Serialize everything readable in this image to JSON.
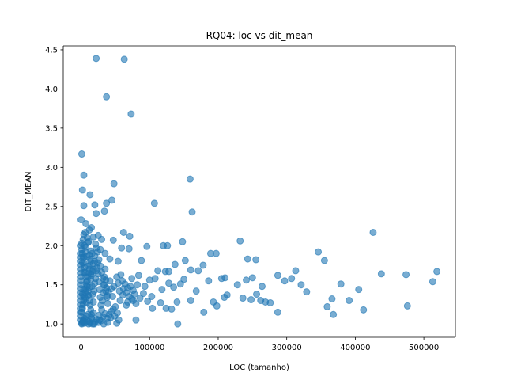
{
  "chart_data": {
    "type": "scatter",
    "title": "RQ04: loc vs dit_mean",
    "xlabel": "LOC (tamanho)",
    "ylabel": "DIT_MEAN",
    "xlim": [
      -26000,
      546000
    ],
    "ylim": [
      0.83,
      4.55
    ],
    "xticks": [
      0,
      100000,
      200000,
      300000,
      400000,
      500000
    ],
    "yticks": [
      1.0,
      1.5,
      2.0,
      2.5,
      3.0,
      3.5,
      4.0,
      4.5
    ],
    "grid": false,
    "legend": "none",
    "marker_color": "#1f77b4",
    "marker_alpha": 0.6,
    "points": [
      [
        22000,
        4.39
      ],
      [
        63000,
        4.38
      ],
      [
        37000,
        3.9
      ],
      [
        73000,
        3.68
      ],
      [
        1000,
        3.17
      ],
      [
        159000,
        2.85
      ],
      [
        4000,
        2.9
      ],
      [
        2000,
        2.71
      ],
      [
        13000,
        2.65
      ],
      [
        48000,
        2.79
      ],
      [
        45000,
        2.58
      ],
      [
        37000,
        2.54
      ],
      [
        107000,
        2.54
      ],
      [
        20000,
        2.52
      ],
      [
        4000,
        2.51
      ],
      [
        34000,
        2.44
      ],
      [
        22000,
        2.41
      ],
      [
        162000,
        2.43
      ],
      [
        0,
        2.33
      ],
      [
        7000,
        2.28
      ],
      [
        15000,
        2.23
      ],
      [
        426000,
        2.17
      ],
      [
        6000,
        2.17
      ],
      [
        12000,
        2.2
      ],
      [
        25000,
        2.13
      ],
      [
        62000,
        2.17
      ],
      [
        71000,
        2.12
      ],
      [
        4000,
        2.14
      ],
      [
        18000,
        2.11
      ],
      [
        30000,
        2.08
      ],
      [
        47000,
        2.07
      ],
      [
        232000,
        2.06
      ],
      [
        148000,
        2.05
      ],
      [
        1000,
        2.03
      ],
      [
        10000,
        2.04
      ],
      [
        21000,
        2.02
      ],
      [
        120000,
        2.0
      ],
      [
        126000,
        2.0
      ],
      [
        96000,
        1.99
      ],
      [
        59000,
        1.97
      ],
      [
        70000,
        1.96
      ],
      [
        346000,
        1.92
      ],
      [
        189000,
        1.9
      ],
      [
        197000,
        1.9
      ],
      [
        28000,
        1.95
      ],
      [
        35000,
        1.9
      ],
      [
        14000,
        1.93
      ],
      [
        243000,
        1.83
      ],
      [
        255000,
        1.82
      ],
      [
        355000,
        1.81
      ],
      [
        88000,
        1.81
      ],
      [
        152000,
        1.81
      ],
      [
        4000,
        1.85
      ],
      [
        13000,
        1.83
      ],
      [
        42000,
        1.83
      ],
      [
        54000,
        1.8
      ],
      [
        137000,
        1.76
      ],
      [
        178000,
        1.75
      ],
      [
        160000,
        1.69
      ],
      [
        171000,
        1.68
      ],
      [
        313000,
        1.68
      ],
      [
        123000,
        1.67
      ],
      [
        128000,
        1.67
      ],
      [
        519000,
        1.67
      ],
      [
        438000,
        1.64
      ],
      [
        474000,
        1.63
      ],
      [
        287000,
        1.62
      ],
      [
        307000,
        1.58
      ],
      [
        250000,
        1.59
      ],
      [
        210000,
        1.59
      ],
      [
        205000,
        1.58
      ],
      [
        513000,
        1.54
      ],
      [
        321000,
        1.5
      ],
      [
        379000,
        1.51
      ],
      [
        264000,
        1.48
      ],
      [
        228000,
        1.5
      ],
      [
        186000,
        1.55
      ],
      [
        241000,
        1.56
      ],
      [
        297000,
        1.55
      ],
      [
        329000,
        1.41
      ],
      [
        405000,
        1.44
      ],
      [
        256000,
        1.38
      ],
      [
        213000,
        1.37
      ],
      [
        209000,
        1.34
      ],
      [
        236000,
        1.33
      ],
      [
        248000,
        1.31
      ],
      [
        262000,
        1.3
      ],
      [
        269000,
        1.28
      ],
      [
        276000,
        1.27
      ],
      [
        366000,
        1.32
      ],
      [
        391000,
        1.3
      ],
      [
        359000,
        1.22
      ],
      [
        412000,
        1.18
      ],
      [
        476000,
        1.23
      ],
      [
        368000,
        1.12
      ],
      [
        287000,
        1.15
      ],
      [
        179000,
        1.15
      ],
      [
        193000,
        1.28
      ],
      [
        198000,
        1.23
      ],
      [
        160000,
        1.3
      ],
      [
        140000,
        1.28
      ],
      [
        116000,
        1.27
      ],
      [
        132000,
        1.19
      ],
      [
        124000,
        1.2
      ],
      [
        104000,
        1.2
      ],
      [
        141000,
        1.0
      ],
      [
        80000,
        1.05
      ],
      [
        52000,
        1.01
      ],
      [
        55000,
        1.05
      ],
      [
        93000,
        1.48
      ],
      [
        100000,
        1.56
      ],
      [
        108000,
        1.58
      ],
      [
        112000,
        1.68
      ],
      [
        84000,
        1.62
      ],
      [
        76000,
        1.43
      ],
      [
        68000,
        1.46
      ],
      [
        61000,
        1.37
      ],
      [
        57000,
        1.3
      ],
      [
        66000,
        1.24
      ],
      [
        74000,
        1.32
      ],
      [
        86000,
        1.33
      ],
      [
        91000,
        1.39
      ],
      [
        97000,
        1.29
      ],
      [
        103000,
        1.35
      ],
      [
        118000,
        1.44
      ],
      [
        128000,
        1.52
      ],
      [
        135000,
        1.47
      ],
      [
        145000,
        1.51
      ],
      [
        150000,
        1.57
      ],
      [
        168000,
        1.42
      ],
      [
        1000,
        1.0
      ],
      [
        2000,
        1.02
      ],
      [
        3000,
        1.05
      ],
      [
        5000,
        1.07
      ],
      [
        8000,
        1.1
      ],
      [
        10000,
        1.12
      ],
      [
        12000,
        1.03
      ],
      [
        15000,
        1.08
      ],
      [
        18000,
        1.14
      ],
      [
        20000,
        1.02
      ],
      [
        23000,
        1.06
      ],
      [
        26000,
        1.11
      ],
      [
        29000,
        1.04
      ],
      [
        32000,
        1.09
      ],
      [
        35000,
        1.13
      ],
      [
        38000,
        1.07
      ],
      [
        41000,
        1.12
      ],
      [
        44000,
        1.16
      ],
      [
        47000,
        1.19
      ],
      [
        50000,
        1.22
      ],
      [
        1000,
        1.15
      ],
      [
        2000,
        1.2
      ],
      [
        3000,
        1.25
      ],
      [
        4000,
        1.3
      ],
      [
        5000,
        1.35
      ],
      [
        6000,
        1.4
      ],
      [
        7000,
        1.45
      ],
      [
        8000,
        1.5
      ],
      [
        9000,
        1.55
      ],
      [
        10000,
        1.6
      ],
      [
        11000,
        1.65
      ],
      [
        12000,
        1.7
      ],
      [
        13000,
        1.75
      ],
      [
        14000,
        1.8
      ],
      [
        15000,
        1.62
      ],
      [
        16000,
        1.48
      ],
      [
        17000,
        1.38
      ],
      [
        18000,
        1.28
      ],
      [
        19000,
        1.42
      ],
      [
        20000,
        1.52
      ],
      [
        21000,
        1.58
      ],
      [
        22000,
        1.68
      ],
      [
        23000,
        1.72
      ],
      [
        24000,
        1.78
      ],
      [
        25000,
        1.64
      ],
      [
        26000,
        1.54
      ],
      [
        27000,
        1.44
      ],
      [
        28000,
        1.34
      ],
      [
        29000,
        1.24
      ],
      [
        30000,
        1.18
      ],
      [
        31000,
        1.3
      ],
      [
        32000,
        1.4
      ],
      [
        33000,
        1.5
      ],
      [
        34000,
        1.6
      ],
      [
        35000,
        1.7
      ],
      [
        36000,
        1.56
      ],
      [
        37000,
        1.46
      ],
      [
        38000,
        1.36
      ],
      [
        39000,
        1.26
      ],
      [
        40000,
        1.41
      ],
      [
        0,
        1.1
      ],
      [
        0,
        1.2
      ],
      [
        0,
        1.3
      ],
      [
        0,
        1.4
      ],
      [
        0,
        1.5
      ],
      [
        0,
        1.6
      ],
      [
        0,
        1.7
      ],
      [
        0,
        1.8
      ],
      [
        0,
        1.9
      ],
      [
        0,
        2.0
      ],
      [
        0,
        1.05
      ],
      [
        0,
        1.15
      ],
      [
        0,
        1.25
      ],
      [
        0,
        1.35
      ],
      [
        0,
        1.45
      ],
      [
        0,
        1.55
      ],
      [
        0,
        1.65
      ],
      [
        0,
        1.75
      ],
      [
        0,
        1.85
      ],
      [
        1000,
        1.95
      ],
      [
        2000,
        1.9
      ],
      [
        3000,
        1.85
      ],
      [
        4000,
        1.78
      ],
      [
        5000,
        1.72
      ],
      [
        6000,
        1.66
      ],
      [
        7000,
        1.6
      ],
      [
        8000,
        1.54
      ],
      [
        9000,
        1.48
      ],
      [
        10000,
        1.42
      ],
      [
        11000,
        1.36
      ],
      [
        12000,
        1.3
      ],
      [
        13000,
        1.24
      ],
      [
        14000,
        1.18
      ],
      [
        15000,
        1.12
      ],
      [
        16000,
        1.06
      ],
      [
        17000,
        1.0
      ],
      [
        2000,
        1.38
      ],
      [
        4000,
        1.44
      ],
      [
        6000,
        1.33
      ],
      [
        8000,
        1.27
      ],
      [
        10000,
        1.37
      ],
      [
        12000,
        1.47
      ],
      [
        14000,
        1.57
      ],
      [
        16000,
        1.67
      ],
      [
        18000,
        1.77
      ],
      [
        20000,
        1.87
      ],
      [
        22000,
        1.97
      ],
      [
        24000,
        1.92
      ],
      [
        26000,
        1.82
      ],
      [
        28000,
        1.74
      ],
      [
        30000,
        1.66
      ],
      [
        32000,
        1.58
      ],
      [
        34000,
        1.5
      ],
      [
        36000,
        1.42
      ],
      [
        38000,
        1.34
      ],
      [
        42000,
        1.55
      ],
      [
        44000,
        1.45
      ],
      [
        46000,
        1.35
      ],
      [
        48000,
        1.48
      ],
      [
        52000,
        1.6
      ],
      [
        54000,
        1.52
      ],
      [
        56000,
        1.42
      ],
      [
        58000,
        1.63
      ],
      [
        60000,
        1.55
      ],
      [
        62000,
        1.45
      ],
      [
        64000,
        1.51
      ],
      [
        66000,
        1.4
      ],
      [
        68000,
        1.28
      ],
      [
        70000,
        1.35
      ],
      [
        72000,
        1.48
      ],
      [
        74000,
        1.58
      ],
      [
        76000,
        1.3
      ],
      [
        78000,
        1.38
      ],
      [
        80000,
        1.26
      ],
      [
        82000,
        1.5
      ],
      [
        1000,
        1.01
      ],
      [
        3000,
        1.03
      ],
      [
        5000,
        1.01
      ],
      [
        7000,
        1.02
      ],
      [
        9000,
        1.04
      ],
      [
        11000,
        1.0
      ],
      [
        13000,
        1.01
      ],
      [
        19000,
        1.0
      ],
      [
        25000,
        1.02
      ],
      [
        27000,
        1.05
      ],
      [
        33000,
        1.0
      ],
      [
        39000,
        1.02
      ],
      [
        43000,
        1.08
      ],
      [
        49000,
        1.1
      ],
      [
        53000,
        1.14
      ],
      [
        2000,
        1.78
      ],
      [
        4000,
        1.66
      ],
      [
        6000,
        1.92
      ],
      [
        8000,
        1.86
      ],
      [
        10000,
        1.74
      ],
      [
        12000,
        1.88
      ],
      [
        14000,
        1.64
      ],
      [
        16000,
        1.9
      ],
      [
        18000,
        1.7
      ],
      [
        20000,
        1.8
      ],
      [
        3000,
        2.08
      ],
      [
        5000,
        2.0
      ],
      [
        7000,
        1.98
      ],
      [
        9000,
        2.1
      ],
      [
        11000,
        2.05
      ]
    ]
  }
}
